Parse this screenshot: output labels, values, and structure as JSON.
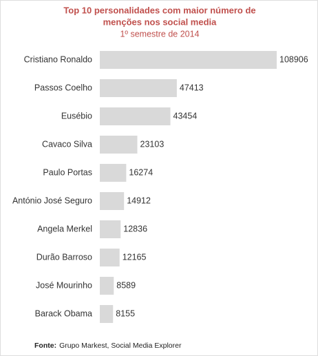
{
  "chart_data": {
    "type": "hbar",
    "title": [
      "Top 10  personalidades com maior número de",
      "menções nos social media"
    ],
    "subtitle": "1º semestre de 2014",
    "categories": [
      "Cristiano Ronaldo",
      "Passos Coelho",
      "Eusébio",
      "Cavaco Silva",
      "Paulo Portas",
      "António José Seguro",
      "Angela Merkel",
      "Durão Barroso",
      "José Mourinho",
      "Barack Obama"
    ],
    "values": [
      108906,
      47413,
      43454,
      23103,
      16274,
      14912,
      12836,
      12165,
      8589,
      8155
    ],
    "color": "#d9d9d9",
    "source_label": "Fonte:",
    "source": "Grupo Markest, Social Media Explorer"
  }
}
